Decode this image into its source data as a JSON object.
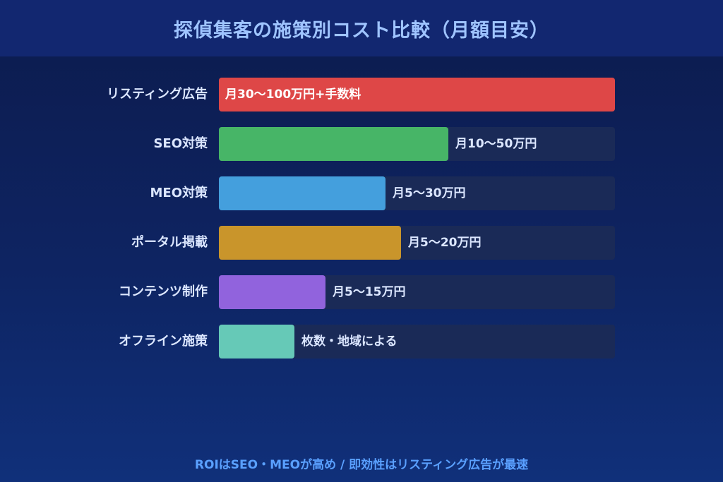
{
  "title": "探偵集客の施策別コスト比較（月額目安）",
  "footer": "ROIはSEO・MEOが高め / 即効性はリスティング広告が最速",
  "chart_data": {
    "type": "bar",
    "orientation": "horizontal",
    "title": "探偵集客の施策別コスト比較（月額目安）",
    "categories": [
      "リスティング広告",
      "SEO対策",
      "MEO対策",
      "ポータル掲載",
      "コンテンツ制作",
      "オフライン施策"
    ],
    "value_labels": [
      "月30〜100万円+手数料",
      "月10〜50万円",
      "月5〜30万円",
      "月5〜20万円",
      "月5〜15万円",
      "枚数・地域による"
    ],
    "values": [
      100,
      58,
      42,
      46,
      27,
      19
    ],
    "colors": [
      "#de4747",
      "#47b567",
      "#449fdd",
      "#c9952b",
      "#9163dd",
      "#66c9b7"
    ],
    "xlim": [
      0,
      100
    ],
    "grid": false,
    "legend": "none"
  }
}
